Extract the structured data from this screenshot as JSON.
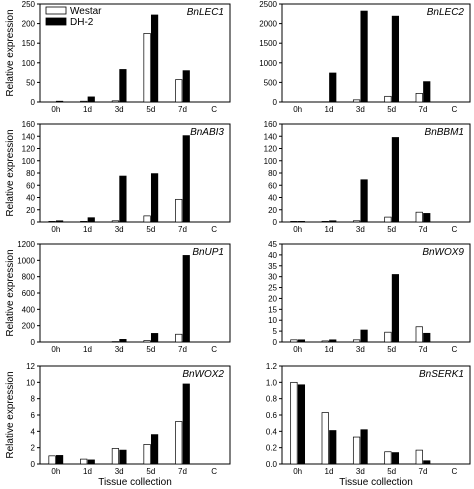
{
  "legend": {
    "entries": [
      {
        "label": "Westar",
        "fill": "#ffffff"
      },
      {
        "label": "DH-2",
        "fill": "#000000"
      }
    ]
  },
  "axis_labels": {
    "ylabel": "Relative expression",
    "xlabel": "Tissue collection"
  },
  "colors": {
    "westar": "#ffffff",
    "dh2": "#000000",
    "axis": "#000000"
  },
  "chart_data": [
    {
      "type": "bar",
      "title": "BnLEC1",
      "categories": [
        "0h",
        "1d",
        "3d",
        "5d",
        "7d",
        "C"
      ],
      "series": [
        {
          "name": "Westar",
          "values": [
            0,
            2,
            3,
            175,
            57,
            0
          ]
        },
        {
          "name": "DH-2",
          "values": [
            2,
            13,
            83,
            222,
            80,
            0
          ]
        }
      ],
      "ylim": [
        0,
        250
      ],
      "yticks": [
        0,
        50,
        100,
        150,
        200,
        250
      ],
      "ylabel": "Relative expression",
      "xlabel": ""
    },
    {
      "type": "bar",
      "title": "BnLEC2",
      "categories": [
        "0h",
        "1d",
        "3d",
        "5d",
        "7d",
        "C"
      ],
      "series": [
        {
          "name": "Westar",
          "values": [
            0,
            0,
            55,
            145,
            220,
            0
          ]
        },
        {
          "name": "DH-2",
          "values": [
            0,
            740,
            2320,
            2190,
            520,
            0
          ]
        }
      ],
      "ylim": [
        0,
        2500
      ],
      "yticks": [
        0,
        500,
        1000,
        1500,
        2000,
        2500
      ],
      "ylabel": "",
      "xlabel": ""
    },
    {
      "type": "bar",
      "title": "BnABI3",
      "categories": [
        "0h",
        "1d",
        "3d",
        "5d",
        "7d",
        "C"
      ],
      "series": [
        {
          "name": "Westar",
          "values": [
            1,
            1,
            2,
            10,
            37,
            0
          ]
        },
        {
          "name": "DH-2",
          "values": [
            2,
            7,
            75,
            79,
            141,
            0
          ]
        }
      ],
      "ylim": [
        0,
        160
      ],
      "yticks": [
        0,
        20,
        40,
        60,
        80,
        100,
        120,
        140,
        160
      ],
      "ylabel": "Relative expression",
      "xlabel": ""
    },
    {
      "type": "bar",
      "title": "BnBBM1",
      "categories": [
        "0h",
        "1d",
        "3d",
        "5d",
        "7d",
        "C"
      ],
      "series": [
        {
          "name": "Westar",
          "values": [
            1,
            1,
            2,
            8,
            16,
            0
          ]
        },
        {
          "name": "DH-2",
          "values": [
            1,
            2,
            69,
            138,
            14,
            0
          ]
        }
      ],
      "ylim": [
        0,
        160
      ],
      "yticks": [
        0,
        20,
        40,
        60,
        80,
        100,
        120,
        140,
        160
      ],
      "ylabel": "",
      "xlabel": ""
    },
    {
      "type": "bar",
      "title": "BnUP1",
      "categories": [
        "0h",
        "1d",
        "3d",
        "5d",
        "7d",
        "C"
      ],
      "series": [
        {
          "name": "Westar",
          "values": [
            0,
            0,
            5,
            18,
            95,
            0
          ]
        },
        {
          "name": "DH-2",
          "values": [
            0,
            0,
            32,
            105,
            1060,
            0
          ]
        }
      ],
      "ylim": [
        0,
        1200
      ],
      "yticks": [
        0,
        200,
        400,
        600,
        800,
        1000,
        1200
      ],
      "ylabel": "Relative expression",
      "xlabel": ""
    },
    {
      "type": "bar",
      "title": "BnWOX9",
      "categories": [
        "0h",
        "1d",
        "3d",
        "5d",
        "7d",
        "C"
      ],
      "series": [
        {
          "name": "Westar",
          "values": [
            1,
            0.5,
            1,
            4.5,
            7,
            0
          ]
        },
        {
          "name": "DH-2",
          "values": [
            1,
            1,
            5.5,
            31,
            4,
            0
          ]
        }
      ],
      "ylim": [
        0,
        45
      ],
      "yticks": [
        0,
        5,
        10,
        15,
        20,
        25,
        30,
        35,
        40,
        45
      ],
      "ylabel": "",
      "xlabel": ""
    },
    {
      "type": "bar",
      "title": "BnWOX2",
      "categories": [
        "0h",
        "1d",
        "3d",
        "5d",
        "7d",
        "C"
      ],
      "series": [
        {
          "name": "Westar",
          "values": [
            1,
            0.6,
            1.9,
            2.4,
            5.2,
            0
          ]
        },
        {
          "name": "DH-2",
          "values": [
            1.05,
            0.5,
            1.7,
            3.6,
            9.8,
            0
          ]
        }
      ],
      "ylim": [
        0,
        12
      ],
      "yticks": [
        0,
        2,
        4,
        6,
        8,
        10,
        12
      ],
      "ylabel": "Relative expression",
      "xlabel": "Tissue collection"
    },
    {
      "type": "bar",
      "title": "BnSERK1",
      "categories": [
        "0h",
        "1d",
        "3d",
        "5d",
        "7d",
        "C"
      ],
      "series": [
        {
          "name": "Westar",
          "values": [
            1.0,
            0.63,
            0.33,
            0.15,
            0.17,
            0
          ]
        },
        {
          "name": "DH-2",
          "values": [
            0.97,
            0.41,
            0.42,
            0.14,
            0.04,
            0
          ]
        }
      ],
      "ylim": [
        0,
        1.2
      ],
      "yticks": [
        0,
        0.2,
        0.4,
        0.6,
        0.8,
        1.0,
        1.2
      ],
      "ytick_labels": [
        "0.0",
        "0.2",
        "0.4",
        "0.6",
        "0.8",
        "1.0",
        "1.2"
      ],
      "ylabel": "",
      "xlabel": "Tissue collection"
    }
  ]
}
